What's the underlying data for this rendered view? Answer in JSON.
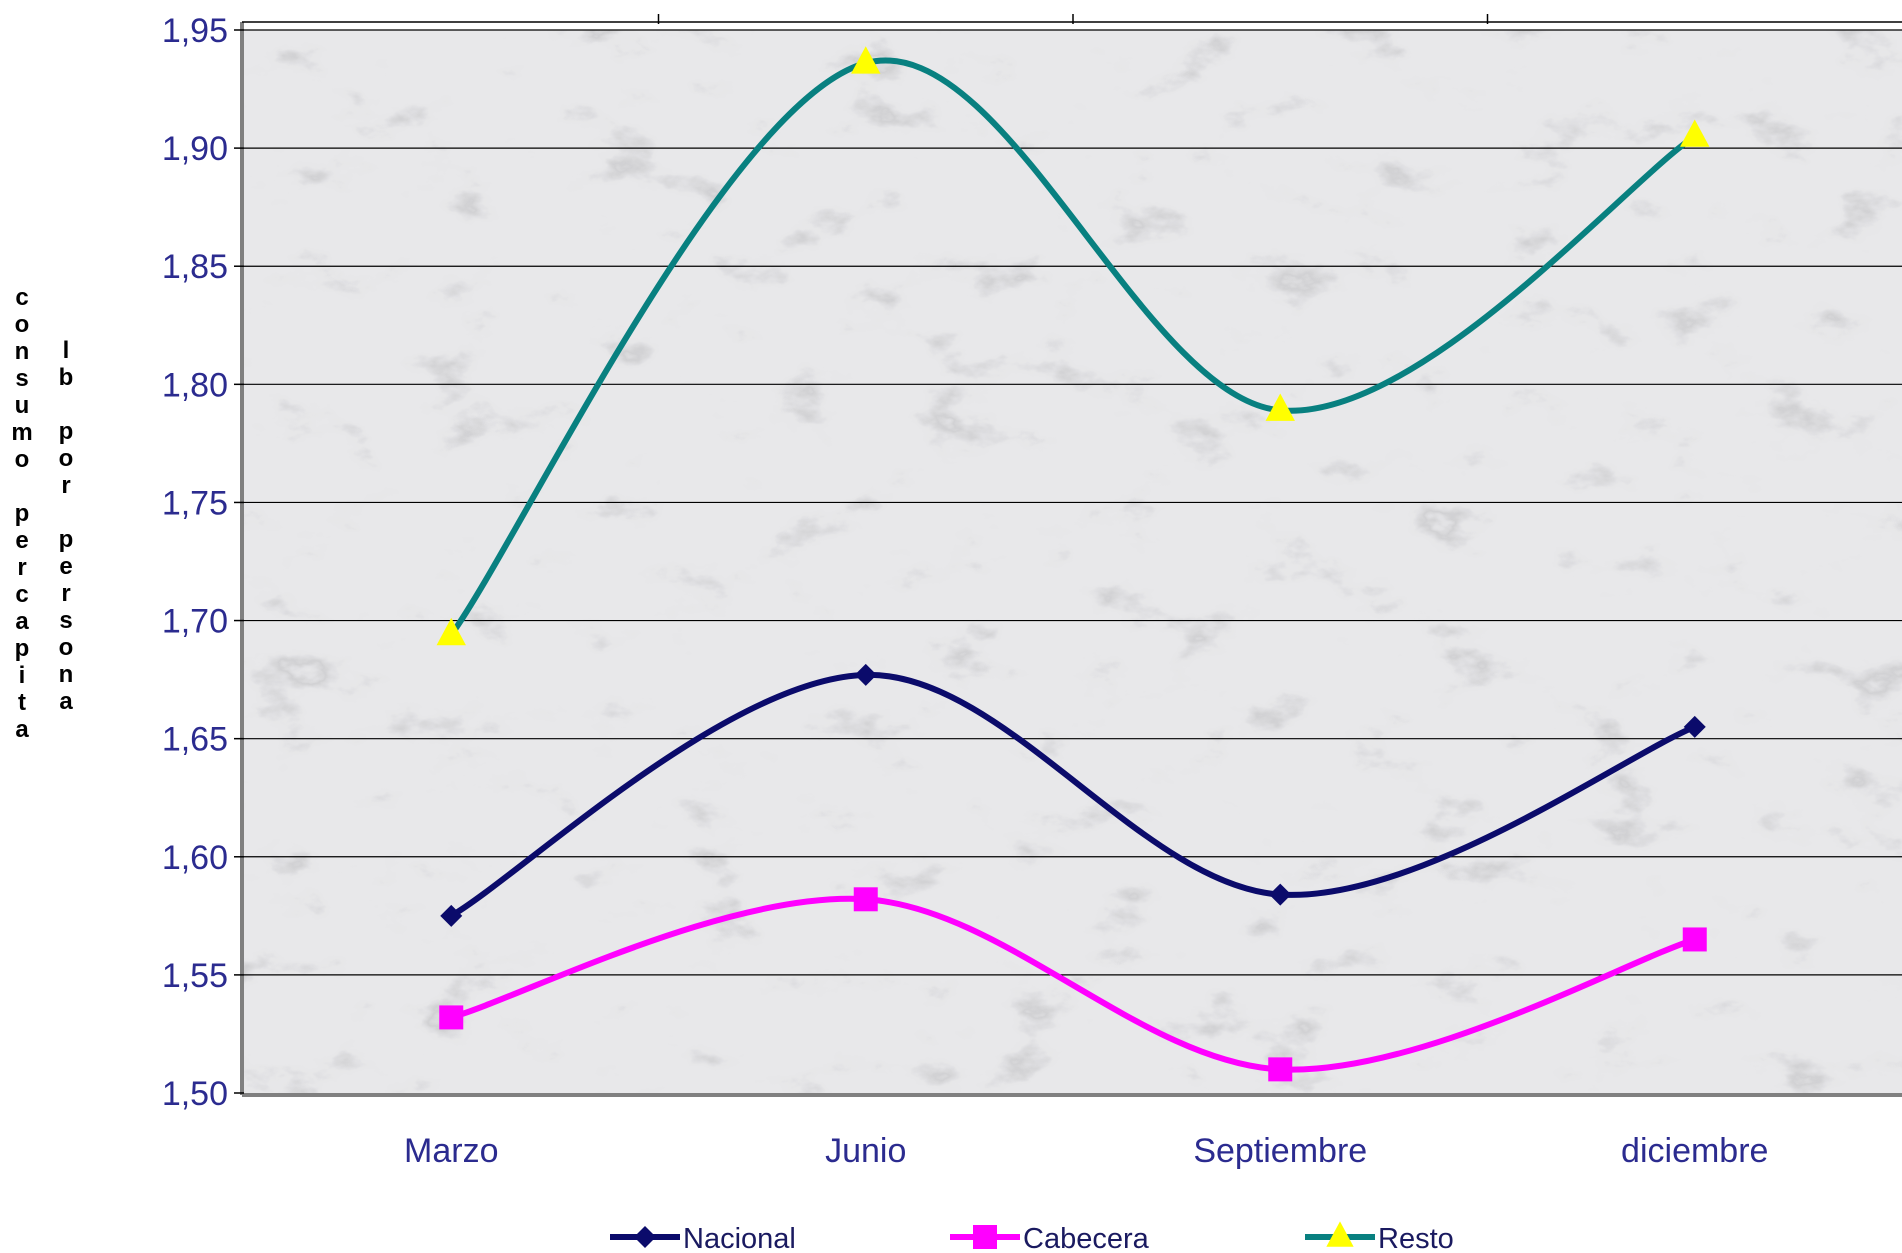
{
  "chart_data": {
    "type": "line",
    "title": "",
    "categories": [
      "Marzo",
      "Junio",
      "Septiembre",
      "diciembre"
    ],
    "ylabel_lines": [
      "consumo percapita",
      "lb por persona"
    ],
    "ylim": [
      1.5,
      1.95
    ],
    "yticks": [
      "1,50",
      "1,55",
      "1,60",
      "1,65",
      "1,70",
      "1,75",
      "1,80",
      "1,85",
      "1,90",
      "1,95"
    ],
    "ytick_values": [
      1.5,
      1.55,
      1.6,
      1.65,
      1.7,
      1.75,
      1.8,
      1.85,
      1.9,
      1.95
    ],
    "grid": true,
    "smooth": true,
    "background": "gray marble texture",
    "legend_position": "bottom",
    "series": [
      {
        "name": "Nacional",
        "values": [
          1.575,
          1.677,
          1.584,
          1.655
        ],
        "color": "#0b0b6b",
        "marker": "diamond"
      },
      {
        "name": "Cabecera",
        "values": [
          1.532,
          1.582,
          1.51,
          1.565
        ],
        "color": "#ff00ff",
        "marker": "square"
      },
      {
        "name": "Resto",
        "values": [
          1.694,
          1.936,
          1.789,
          1.905
        ],
        "color": "#088080",
        "marker": "triangle",
        "marker_color": "#ffff00"
      }
    ]
  }
}
